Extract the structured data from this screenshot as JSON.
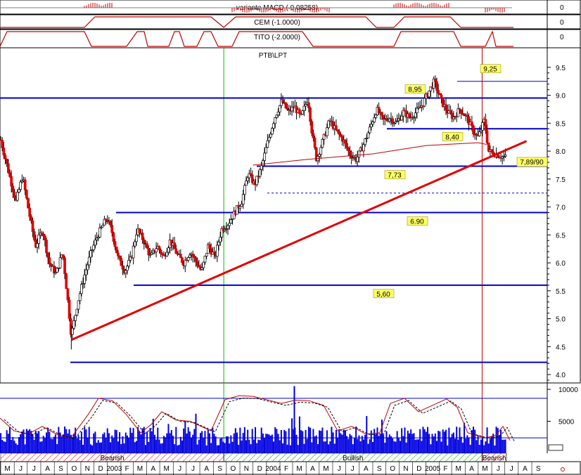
{
  "chart_data": {
    "type": "candlestick",
    "title": "PTB\\LPT",
    "indicators": [
      {
        "label": "variante MACD ( 0.08258)",
        "axis_value": "0"
      },
      {
        "label": "CEM (-1.0000)",
        "axis_value": "0"
      },
      {
        "label": "TITO (-2.0000)",
        "axis_value": "0"
      }
    ],
    "y_ticks": [
      "9.5",
      "9.0",
      "8.5",
      "8.0",
      "7.5",
      "7.0",
      "6.5",
      "6.0",
      "5.5",
      "5.0",
      "4.5",
      "4.0"
    ],
    "ylim": [
      3.85,
      9.85
    ],
    "volume_ticks": [
      "10000",
      "5000"
    ],
    "volume_ylim": [
      0,
      11000
    ],
    "horizontal_levels": [
      {
        "value": 8.95,
        "label": "8,95"
      },
      {
        "value": 8.4,
        "label": "8,40"
      },
      {
        "value": 7.73,
        "label": "7,73"
      },
      {
        "value": 6.9,
        "label": "6.90"
      },
      {
        "value": 5.6,
        "label": "5,60"
      },
      {
        "value": 4.22,
        "label": ""
      }
    ],
    "top_level": {
      "value": 9.25,
      "label": "9,25"
    },
    "dashed_level": 7.25,
    "last_price_label": "7,89/90",
    "trendline": {
      "from": [
        "2002-10-10",
        4.62
      ],
      "to": [
        "2005-08-20",
        8.18
      ]
    },
    "vertical_markers": [
      {
        "date": "2003-09-25",
        "color": "#00c000"
      },
      {
        "date": "2005-05-10",
        "color": "#c00000"
      }
    ],
    "months": [
      "M",
      "J",
      "J",
      "A",
      "S",
      "O",
      "N",
      "D",
      "2003",
      "F",
      "M",
      "A",
      "M",
      "J",
      "J",
      "A",
      "S",
      "O",
      "N",
      "D",
      "2004",
      "F",
      "M",
      "A",
      "M",
      "J",
      "J",
      "A",
      "S",
      "O",
      "N",
      "D",
      "2005",
      "F",
      "M",
      "A",
      "M",
      "J",
      "J",
      "A",
      "S"
    ],
    "regimes": [
      {
        "label": "Bearish",
        "from": "2002-05-01",
        "to": "2003-09-25"
      },
      {
        "label": "Bullish",
        "from": "2003-09-25",
        "to": "2005-05-10"
      },
      {
        "label": "Bearish",
        "from": "2005-05-10",
        "to": "2005-07-05"
      }
    ],
    "price_anchors": [
      [
        "2002-05-01",
        8.2
      ],
      [
        "2002-05-20",
        7.6
      ],
      [
        "2002-06-05",
        7.1
      ],
      [
        "2002-06-20",
        7.55
      ],
      [
        "2002-07-05",
        6.9
      ],
      [
        "2002-07-20",
        6.3
      ],
      [
        "2002-08-05",
        6.6
      ],
      [
        "2002-08-20",
        6.0
      ],
      [
        "2002-09-05",
        5.8
      ],
      [
        "2002-09-20",
        6.2
      ],
      [
        "2002-10-01",
        5.4
      ],
      [
        "2002-10-10",
        4.7
      ],
      [
        "2002-10-25",
        5.3
      ],
      [
        "2002-11-10",
        5.8
      ],
      [
        "2002-11-25",
        6.2
      ],
      [
        "2002-12-10",
        6.5
      ],
      [
        "2002-12-30",
        6.8
      ],
      [
        "2003-01-10",
        6.6
      ],
      [
        "2003-01-25",
        6.1
      ],
      [
        "2003-02-10",
        5.85
      ],
      [
        "2003-02-25",
        6.1
      ],
      [
        "2003-03-10",
        6.6
      ],
      [
        "2003-03-25",
        6.4
      ],
      [
        "2003-04-10",
        6.1
      ],
      [
        "2003-04-25",
        6.3
      ],
      [
        "2003-05-10",
        6.1
      ],
      [
        "2003-05-25",
        6.4
      ],
      [
        "2003-06-10",
        6.15
      ],
      [
        "2003-06-25",
        6.0
      ],
      [
        "2003-07-10",
        6.2
      ],
      [
        "2003-07-25",
        6.0
      ],
      [
        "2003-08-05",
        5.85
      ],
      [
        "2003-08-20",
        6.3
      ],
      [
        "2003-09-05",
        6.1
      ],
      [
        "2003-09-20",
        6.6
      ],
      [
        "2003-10-05",
        6.7
      ],
      [
        "2003-10-20",
        6.9
      ],
      [
        "2003-11-05",
        7.1
      ],
      [
        "2003-11-20",
        7.6
      ],
      [
        "2003-12-05",
        7.4
      ],
      [
        "2003-12-20",
        7.7
      ],
      [
        "2004-01-05",
        8.2
      ],
      [
        "2004-01-20",
        8.6
      ],
      [
        "2004-02-05",
        8.9
      ],
      [
        "2004-02-20",
        8.7
      ],
      [
        "2004-03-05",
        8.8
      ],
      [
        "2004-03-20",
        8.6
      ],
      [
        "2004-04-05",
        8.95
      ],
      [
        "2004-04-15",
        8.3
      ],
      [
        "2004-04-25",
        7.85
      ],
      [
        "2004-05-10",
        8.2
      ],
      [
        "2004-05-25",
        8.55
      ],
      [
        "2004-06-10",
        8.35
      ],
      [
        "2004-06-25",
        8.2
      ],
      [
        "2004-07-10",
        7.95
      ],
      [
        "2004-07-25",
        7.85
      ],
      [
        "2004-08-10",
        8.1
      ],
      [
        "2004-08-25",
        8.4
      ],
      [
        "2004-09-10",
        8.75
      ],
      [
        "2004-09-25",
        8.55
      ],
      [
        "2004-10-10",
        8.6
      ],
      [
        "2004-10-25",
        8.5
      ],
      [
        "2004-11-10",
        8.7
      ],
      [
        "2004-11-25",
        8.6
      ],
      [
        "2004-12-10",
        8.7
      ],
      [
        "2004-12-25",
        8.85
      ],
      [
        "2005-01-10",
        9.1
      ],
      [
        "2005-01-20",
        9.25
      ],
      [
        "2005-02-05",
        8.9
      ],
      [
        "2005-02-20",
        8.7
      ],
      [
        "2005-03-05",
        8.6
      ],
      [
        "2005-03-20",
        8.75
      ],
      [
        "2005-04-05",
        8.6
      ],
      [
        "2005-04-20",
        8.35
      ],
      [
        "2005-05-01",
        8.25
      ],
      [
        "2005-05-15",
        8.55
      ],
      [
        "2005-05-25",
        8.0
      ],
      [
        "2005-06-10",
        7.95
      ],
      [
        "2005-06-25",
        7.9
      ],
      [
        "2005-07-05",
        7.89
      ]
    ],
    "ma_anchors": [
      [
        "2003-12-01",
        7.75
      ],
      [
        "2004-04-01",
        7.85
      ],
      [
        "2004-09-01",
        7.95
      ],
      [
        "2005-01-01",
        8.1
      ],
      [
        "2005-05-01",
        8.15
      ],
      [
        "2005-05-20",
        8.12
      ]
    ]
  }
}
